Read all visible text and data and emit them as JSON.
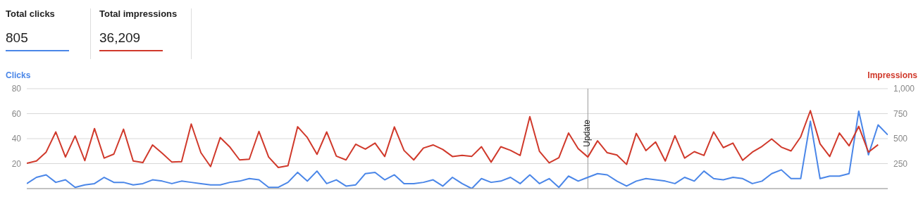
{
  "chart_data": {
    "type": "line",
    "annotations": [
      "Total clicks",
      "805",
      "Total impressions",
      "36,209",
      "Update"
    ],
    "ylabel": "Clicks",
    "y2label": "Impressions",
    "categories": [
      null,
      null,
      null,
      null,
      null,
      null,
      null,
      null,
      null,
      null,
      null,
      null,
      null,
      null,
      null,
      null,
      null,
      null,
      null,
      null,
      null,
      null,
      null,
      null,
      null,
      null,
      null,
      null,
      null,
      null,
      null,
      null,
      null,
      null,
      null,
      null,
      null,
      null,
      null,
      null,
      null,
      null,
      null,
      null,
      null,
      null,
      null,
      null,
      null,
      null,
      null,
      null,
      null,
      null,
      null,
      null,
      null,
      null,
      null,
      null,
      null,
      null,
      null,
      null,
      null,
      null,
      null,
      null,
      null,
      null,
      null,
      null,
      null,
      null,
      null,
      null,
      null,
      null,
      null,
      null,
      null,
      null,
      null,
      null,
      null,
      null,
      null,
      null,
      null,
      null
    ],
    "ylim": [
      0,
      80
    ],
    "yticks": [
      20,
      40,
      60,
      80
    ],
    "y2lim": [
      0,
      1000
    ],
    "y2ticks": [
      250,
      500,
      750,
      {
        "value": 1000,
        "label": "1,000"
      }
    ],
    "grid": "y",
    "legend": false,
    "marker": "none",
    "line_style": "solid",
    "series": [
      {
        "color": "#4a86e8",
        "values": [
          4,
          9,
          11,
          5,
          7,
          1,
          3,
          4,
          9,
          5,
          5,
          3,
          4,
          7,
          6,
          4,
          6,
          5,
          4,
          3,
          3,
          5,
          6,
          8,
          7,
          1,
          1,
          5,
          13,
          6,
          14,
          4,
          7,
          2,
          3,
          12,
          13,
          7,
          11,
          4,
          4,
          5,
          7,
          2,
          9,
          4,
          0,
          8,
          5,
          6,
          9,
          4,
          11,
          4,
          8,
          1,
          10,
          6,
          9,
          12,
          11,
          6,
          2,
          6,
          8,
          7,
          6,
          4,
          9,
          6,
          14,
          8,
          7,
          9,
          8,
          4,
          6,
          12,
          15,
          8,
          8,
          54,
          8,
          10,
          10,
          12,
          62,
          27,
          51,
          43
        ]
      },
      {
        "axis": "y2",
        "color": "#d0392b",
        "values": [
          253,
          276,
          365,
          567,
          316,
          527,
          280,
          601,
          305,
          345,
          594,
          276,
          260,
          437,
          354,
          265,
          269,
          646,
          359,
          220,
          511,
          415,
          287,
          294,
          572,
          316,
          211,
          229,
          619,
          511,
          343,
          567,
          325,
          287,
          444,
          395,
          455,
          321,
          617,
          381,
          287,
          406,
          437,
          392,
          321,
          332,
          323,
          419,
          265,
          419,
          383,
          332,
          720,
          372,
          258,
          309,
          556,
          399,
          316,
          478,
          359,
          336,
          242,
          552,
          381,
          466,
          276,
          529,
          305,
          370,
          332,
          567,
          410,
          455,
          283,
          365,
          422,
          496,
          415,
          377,
          518,
          780,
          448,
          321,
          556,
          428,
          623,
          365,
          439,
          null
        ]
      }
    ]
  }
}
